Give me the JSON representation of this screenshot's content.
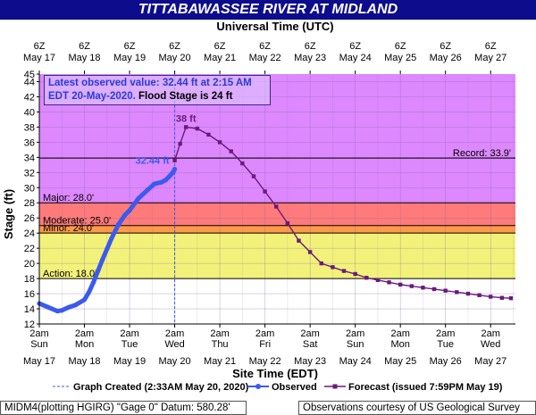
{
  "header": {
    "title": "TITTABAWASSEE RIVER AT MIDLAND"
  },
  "info_box": {
    "line1": "Latest observed value: 32.44 ft at 2:15 AM",
    "line2_obs": "EDT 20-May-2020.",
    "line2_fs": " Flood Stage is 24 ft"
  },
  "legend": {
    "created": "Graph Created (2:33AM May 20, 2020)",
    "observed": "Observed",
    "forecast": "Forecast (issued 7:59PM May 19)"
  },
  "footer": {
    "left": "MIDM4(plotting HGIRG) \"Gage 0\" Datum: 580.28'",
    "right": "Observations courtesy of US Geological Survey"
  },
  "colors": {
    "title_bg": "#0c0c8c",
    "plot_bg_upper": "#dd88ff",
    "major": "#ff7a7a",
    "moderate": "#ff9a4a",
    "minor": "#ffd84a",
    "action": "#f2f27a",
    "normal": "#ffffff",
    "observed": "#3b5af0",
    "forecast": "#6a1a7a"
  },
  "chart_data": {
    "type": "line",
    "title": "TITTABAWASSEE RIVER AT MIDLAND",
    "xlabel_top": "Universal Time (UTC)",
    "xlabel": "Site Time (EDT)",
    "ylabel": "Stage (ft)",
    "ylim": [
      12,
      45
    ],
    "yticks": [
      12,
      14,
      16,
      18,
      20,
      22,
      24,
      26,
      28,
      30,
      32,
      34,
      36,
      38,
      40,
      42,
      44,
      45
    ],
    "x_days_top": [
      "6Z",
      "6Z",
      "6Z",
      "6Z",
      "6Z",
      "6Z",
      "6Z",
      "6Z",
      "6Z",
      "6Z",
      "6Z"
    ],
    "x_dates": [
      "May 17",
      "May 18",
      "May 19",
      "May 20",
      "May 21",
      "May 22",
      "May 23",
      "May 24",
      "May 25",
      "May 26",
      "May 27"
    ],
    "x_bottom_time": [
      "2am",
      "2am",
      "2am",
      "2am",
      "2am",
      "2am",
      "2am",
      "2am",
      "2am",
      "2am",
      "2am"
    ],
    "x_bottom_day": [
      "Sun",
      "Mon",
      "Tue",
      "Wed",
      "Thu",
      "Fri",
      "Sat",
      "Sun",
      "Mon",
      "Tue",
      "Wed"
    ],
    "flood_categories": [
      {
        "name": "Record",
        "label": "Record: 33.9'",
        "value": 33.9
      },
      {
        "name": "Major",
        "label": "Major: 28.0'",
        "value": 28.0
      },
      {
        "name": "Moderate",
        "label": "Moderate: 25.0'",
        "value": 25.0
      },
      {
        "name": "Minor",
        "label": "Minor: 24.0'",
        "value": 24.0
      },
      {
        "name": "Action",
        "label": "Action: 18.0'",
        "value": 18.0
      }
    ],
    "annotations": {
      "observed_label": "32.44 ft",
      "forecast_peak_label": "38 ft"
    },
    "series": [
      {
        "name": "Observed",
        "x_days": [
          0.0,
          0.2,
          0.4,
          0.5,
          0.65,
          0.8,
          1.0,
          1.1,
          1.2,
          1.3,
          1.4,
          1.5,
          1.6,
          1.75,
          1.9,
          2.0,
          2.2,
          2.4,
          2.55,
          2.7,
          2.8,
          2.9,
          2.97,
          3.0
        ],
        "values": [
          14.7,
          14.2,
          13.7,
          13.8,
          14.2,
          14.5,
          15.2,
          16.2,
          17.5,
          19.0,
          20.5,
          21.9,
          23.3,
          25.1,
          26.4,
          27.0,
          28.6,
          29.7,
          30.5,
          30.7,
          31.0,
          31.6,
          32.1,
          32.44
        ]
      },
      {
        "name": "Forecast",
        "x_days": [
          3.0,
          3.12,
          3.25,
          3.5,
          3.75,
          4.0,
          4.25,
          4.5,
          4.75,
          5.0,
          5.25,
          5.5,
          5.75,
          6.0,
          6.25,
          6.5,
          6.75,
          7.0,
          7.25,
          7.5,
          7.75,
          8.0,
          8.25,
          8.5,
          8.75,
          9.0,
          9.25,
          9.5,
          9.75,
          10.0,
          10.25,
          10.45
        ],
        "values": [
          33.6,
          35.8,
          38.0,
          37.8,
          37.0,
          36.0,
          34.8,
          33.2,
          31.5,
          29.5,
          27.5,
          25.3,
          23.0,
          21.5,
          20.0,
          19.5,
          19.0,
          18.6,
          18.1,
          17.8,
          17.5,
          17.2,
          17.0,
          16.8,
          16.6,
          16.4,
          16.2,
          16.0,
          15.8,
          15.6,
          15.45,
          15.4
        ]
      }
    ]
  }
}
